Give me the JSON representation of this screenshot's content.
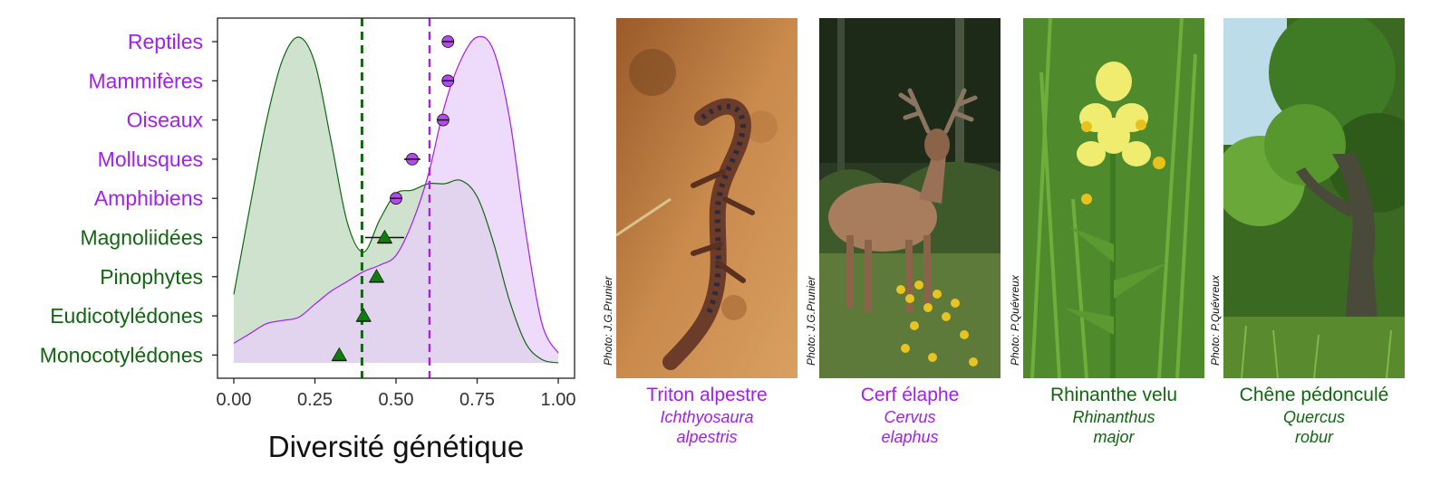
{
  "colors": {
    "animal": "#a020f0",
    "plant": "#126612",
    "animal_fill": "#e8cef8",
    "plant_fill": "#c9dfc9",
    "overlap_fill": "#bfbfce"
  },
  "chart_data": {
    "type": "density",
    "title": "",
    "xlabel": "Diversité génétique",
    "ylabel": "",
    "xlim": [
      0,
      1
    ],
    "x_ticks": [
      "0.00",
      "0.25",
      "0.50",
      "0.75",
      "1.00"
    ],
    "vertical_lines": [
      {
        "group": "plant",
        "x": 0.395,
        "style": "dashed"
      },
      {
        "group": "animal",
        "x": 0.603,
        "style": "dashed"
      }
    ],
    "points": [
      {
        "label": "Reptiles",
        "group": "animal",
        "x": 0.66,
        "err": 0.0
      },
      {
        "label": "Mammifères",
        "group": "animal",
        "x": 0.66,
        "err": 0.0
      },
      {
        "label": "Oiseaux",
        "group": "animal",
        "x": 0.645,
        "err": 0.0
      },
      {
        "label": "Mollusques",
        "group": "animal",
        "x": 0.55,
        "err": 0.025
      },
      {
        "label": "Amphibiens",
        "group": "animal",
        "x": 0.5,
        "err": 0.0
      },
      {
        "label": "Magnoliidées",
        "group": "plant",
        "x": 0.465,
        "err": 0.06
      },
      {
        "label": "Pinophytes",
        "group": "plant",
        "x": 0.44,
        "err": 0.0
      },
      {
        "label": "Eudicotylédones",
        "group": "plant",
        "x": 0.4,
        "err": 0.0
      },
      {
        "label": "Monocotylédones",
        "group": "plant",
        "x": 0.325,
        "err": 0.0
      }
    ],
    "density_series": [
      {
        "group": "plant",
        "x": [
          0.0,
          0.05,
          0.1,
          0.15,
          0.2,
          0.25,
          0.3,
          0.35,
          0.4,
          0.45,
          0.5,
          0.55,
          0.6,
          0.65,
          0.7,
          0.75,
          0.8,
          0.85,
          0.9,
          0.95,
          1.0
        ],
        "y": [
          0.21,
          0.48,
          0.74,
          0.93,
          1.0,
          0.92,
          0.68,
          0.43,
          0.34,
          0.44,
          0.52,
          0.53,
          0.55,
          0.55,
          0.56,
          0.51,
          0.37,
          0.19,
          0.06,
          0.01,
          0.0
        ]
      },
      {
        "group": "animal",
        "x": [
          0.0,
          0.05,
          0.1,
          0.15,
          0.2,
          0.25,
          0.3,
          0.35,
          0.4,
          0.45,
          0.5,
          0.55,
          0.6,
          0.65,
          0.7,
          0.75,
          0.8,
          0.85,
          0.9,
          0.95,
          1.0
        ],
        "y": [
          0.06,
          0.09,
          0.12,
          0.13,
          0.14,
          0.18,
          0.22,
          0.25,
          0.28,
          0.3,
          0.33,
          0.43,
          0.58,
          0.79,
          0.93,
          1.0,
          0.96,
          0.75,
          0.4,
          0.12,
          0.03
        ]
      }
    ]
  },
  "photos": [
    {
      "credit": "Photo: J.G.Prunier",
      "common": "Triton alpestre",
      "sci1": "Ichthyosaura",
      "sci2": "alpestris",
      "group": "animal"
    },
    {
      "credit": "Photo: J.G.Prunier",
      "common": "Cerf élaphe",
      "sci1": "Cervus",
      "sci2": "elaphus",
      "group": "animal"
    },
    {
      "credit": "Photo: P.Quévreux",
      "common": "Rhinanthe velu",
      "sci1": "Rhinanthus",
      "sci2": "major",
      "group": "plant"
    },
    {
      "credit": "Photo: P.Quévreux",
      "common": "Chêne pédonculé",
      "sci1": "Quercus",
      "sci2": "robur",
      "group": "plant"
    }
  ]
}
